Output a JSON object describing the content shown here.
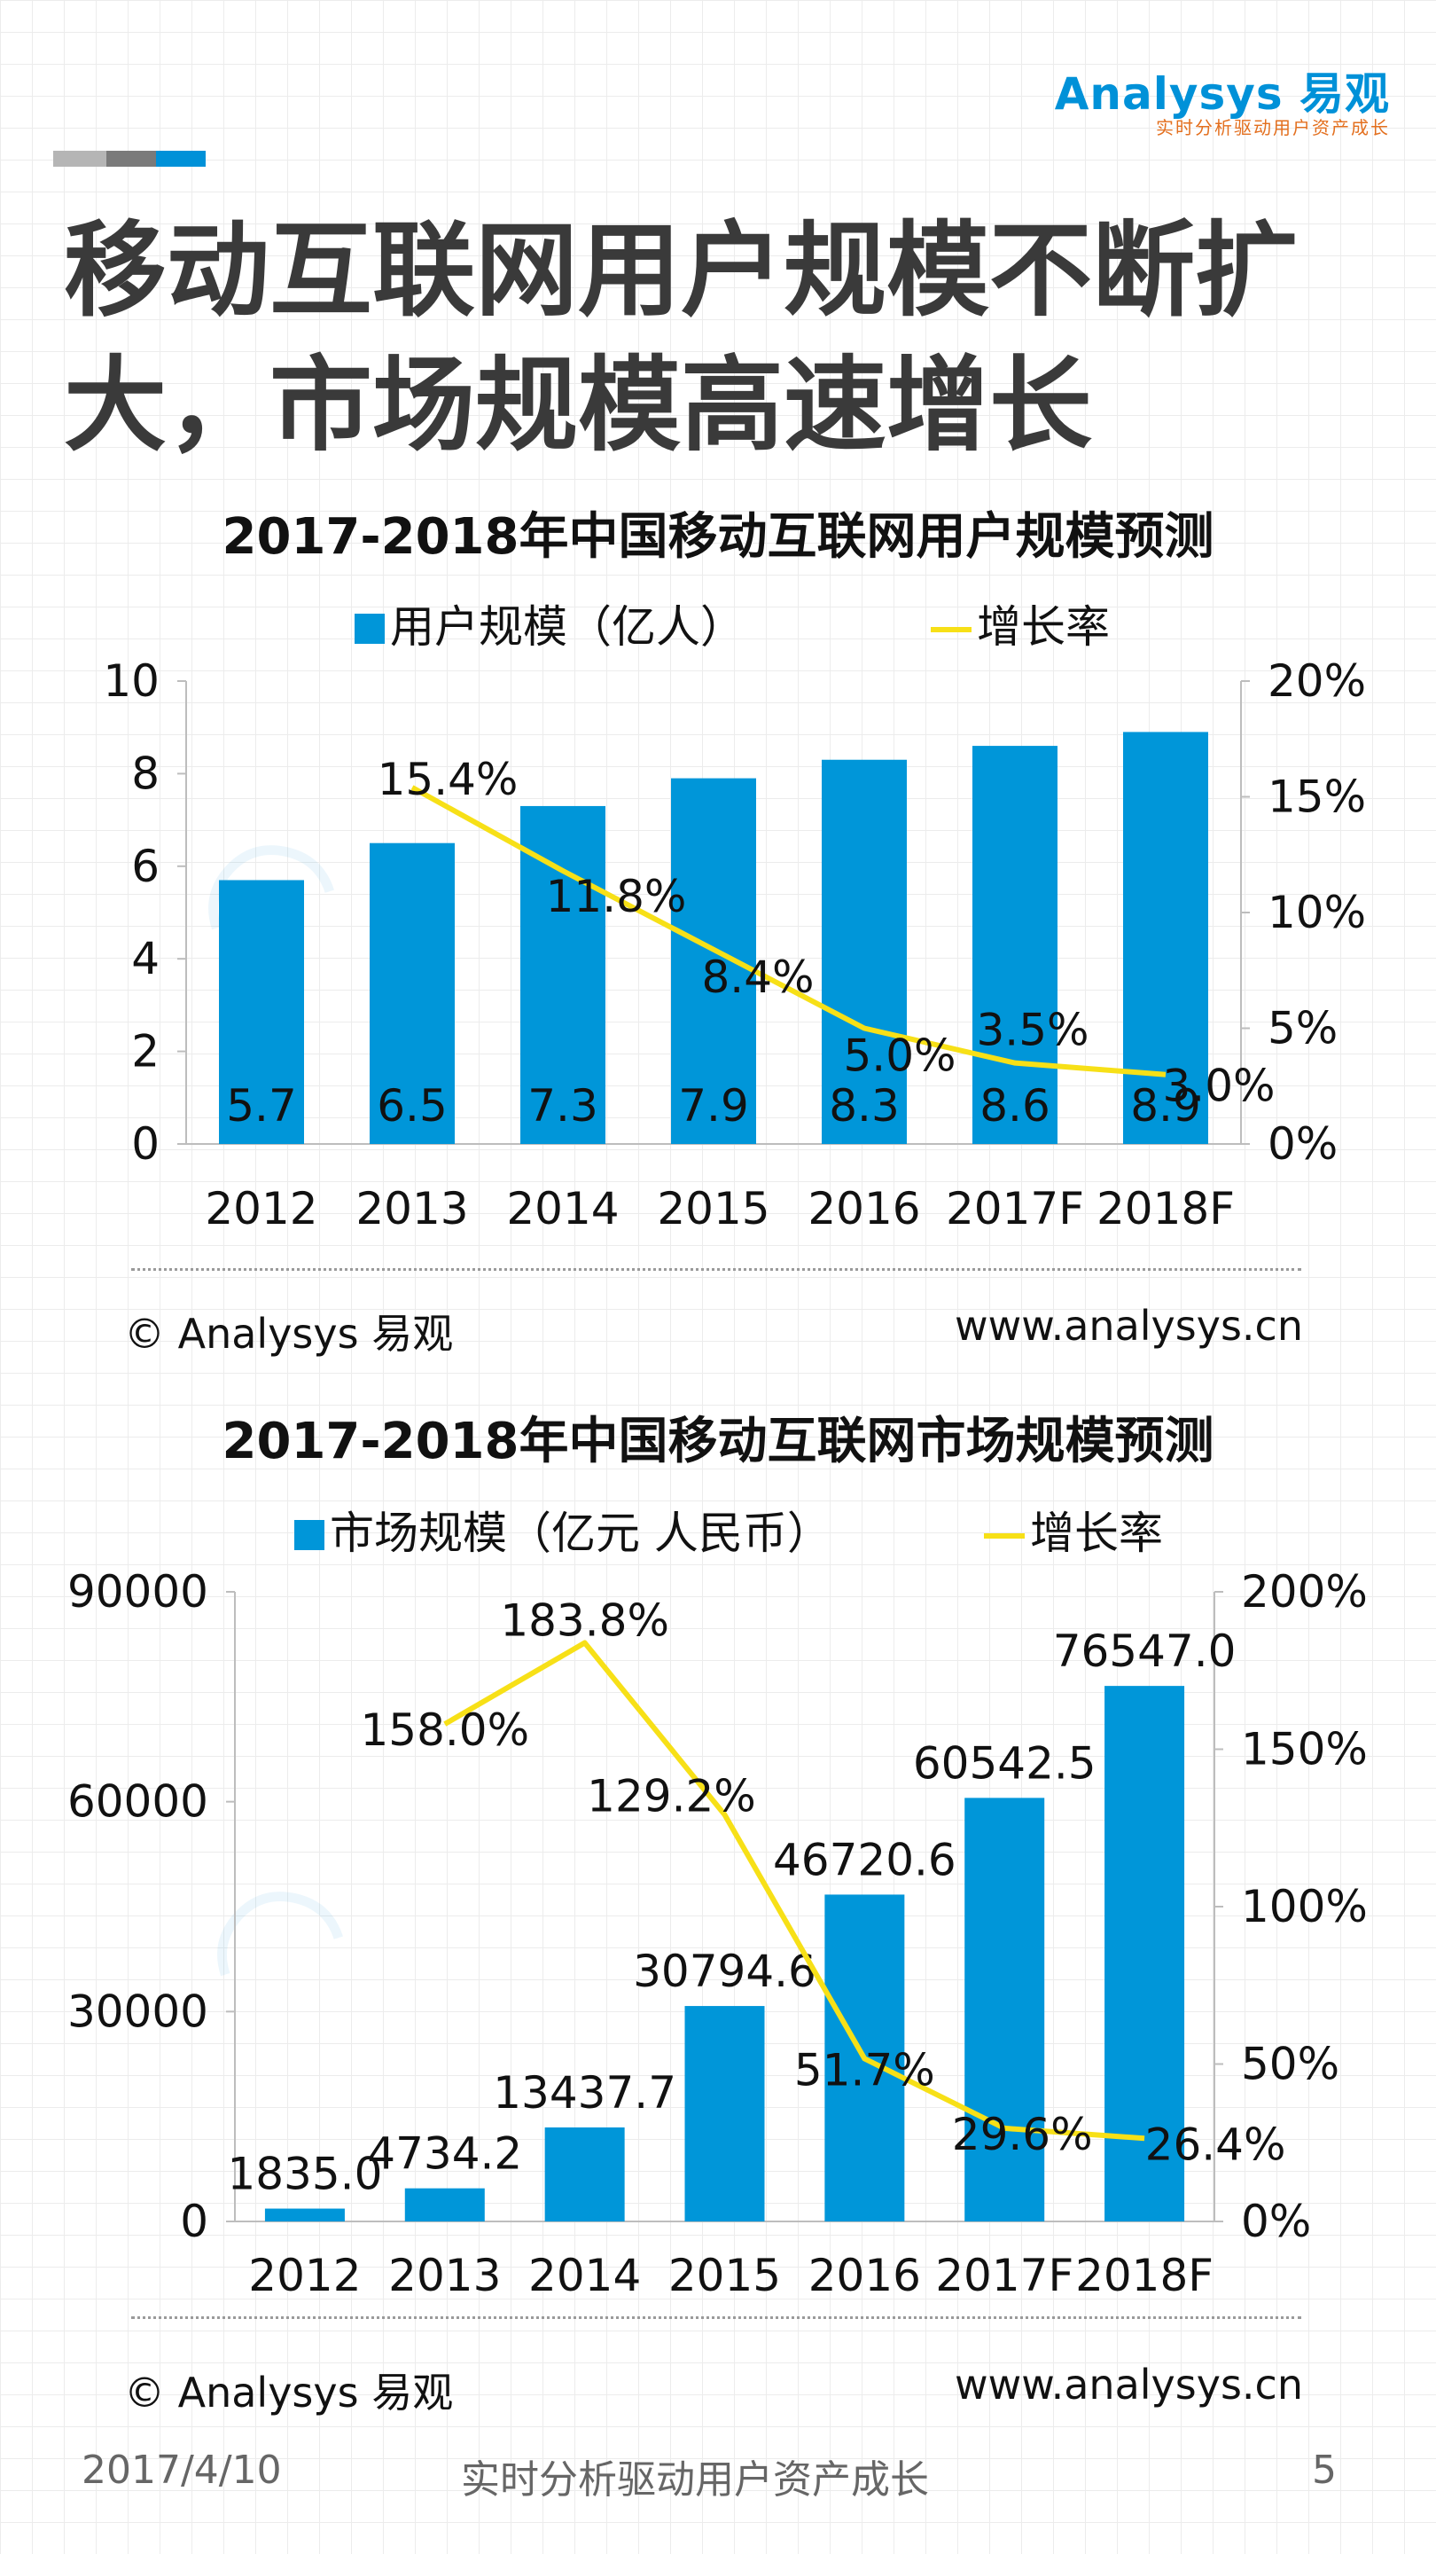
{
  "brand": {
    "name": "Analysys 易观",
    "slogan": "实时分析驱动用户资产成长"
  },
  "colors": {
    "bar": "#0096d9",
    "line": "#f7e017",
    "accent_gray1": "#b5b5b5",
    "accent_gray2": "#7a7a7a",
    "accent_blue": "#0091d8"
  },
  "page_title": "移动互联网用户规模不断扩大，市场规模高速增长",
  "chart_data": [
    {
      "type": "bar",
      "title": "2017-2018年中国移动互联网用户规模预测",
      "categories": [
        "2012",
        "2013",
        "2014",
        "2015",
        "2016",
        "2017F",
        "2018F"
      ],
      "series": [
        {
          "name": "用户规模（亿人）",
          "kind": "bar",
          "axis": "left",
          "values": [
            5.7,
            6.5,
            7.3,
            7.9,
            8.3,
            8.6,
            8.9
          ],
          "labels": [
            "5.7",
            "6.5",
            "7.3",
            "7.9",
            "8.3",
            "8.6",
            "8.9"
          ]
        },
        {
          "name": "增长率",
          "kind": "line",
          "axis": "right",
          "values": [
            null,
            15.4,
            11.8,
            8.4,
            5.0,
            3.5,
            3.0
          ],
          "labels": [
            "",
            "15.4%",
            "11.8%",
            "8.4%",
            "5.0%",
            "3.5%",
            "3.0%"
          ]
        }
      ],
      "yleft": {
        "min": 0,
        "max": 10,
        "ticks": [
          "0",
          "2",
          "4",
          "6",
          "8",
          "10"
        ]
      },
      "yright": {
        "min": 0,
        "max": 20,
        "ticks": [
          "0%",
          "5%",
          "10%",
          "15%",
          "20%"
        ]
      },
      "legend": "top-center",
      "credit_left": "© Analysys 易观",
      "credit_right": "www.analysys.cn"
    },
    {
      "type": "bar",
      "title": "2017-2018年中国移动互联网市场规模预测",
      "categories": [
        "2012",
        "2013",
        "2014",
        "2015",
        "2016",
        "2017F",
        "2018F"
      ],
      "series": [
        {
          "name": "市场规模（亿元 人民币）",
          "kind": "bar",
          "axis": "left",
          "values": [
            1835.0,
            4734.2,
            13437.7,
            30794.6,
            46720.6,
            60542.5,
            76547.0
          ],
          "labels": [
            "1835.0",
            "4734.2",
            "13437.7",
            "30794.6",
            "46720.6",
            "60542.5",
            "76547.0"
          ]
        },
        {
          "name": "增长率",
          "kind": "line",
          "axis": "right",
          "values": [
            null,
            158.0,
            183.8,
            129.2,
            51.7,
            29.6,
            26.4
          ],
          "labels": [
            "",
            "158.0%",
            "183.8%",
            "129.2%",
            "51.7%",
            "29.6%",
            "26.4%"
          ]
        }
      ],
      "yleft": {
        "min": 0,
        "max": 90000,
        "ticks": [
          "0",
          "30000",
          "60000",
          "90000"
        ]
      },
      "yright": {
        "min": 0,
        "max": 200,
        "ticks": [
          "0%",
          "50%",
          "100%",
          "150%",
          "200%"
        ]
      },
      "legend": "top-center",
      "credit_left": "© Analysys 易观",
      "credit_right": "www.analysys.cn"
    }
  ],
  "footer": {
    "date": "2017/4/10",
    "slogan": "实时分析驱动用户资产成长",
    "page": "5"
  }
}
